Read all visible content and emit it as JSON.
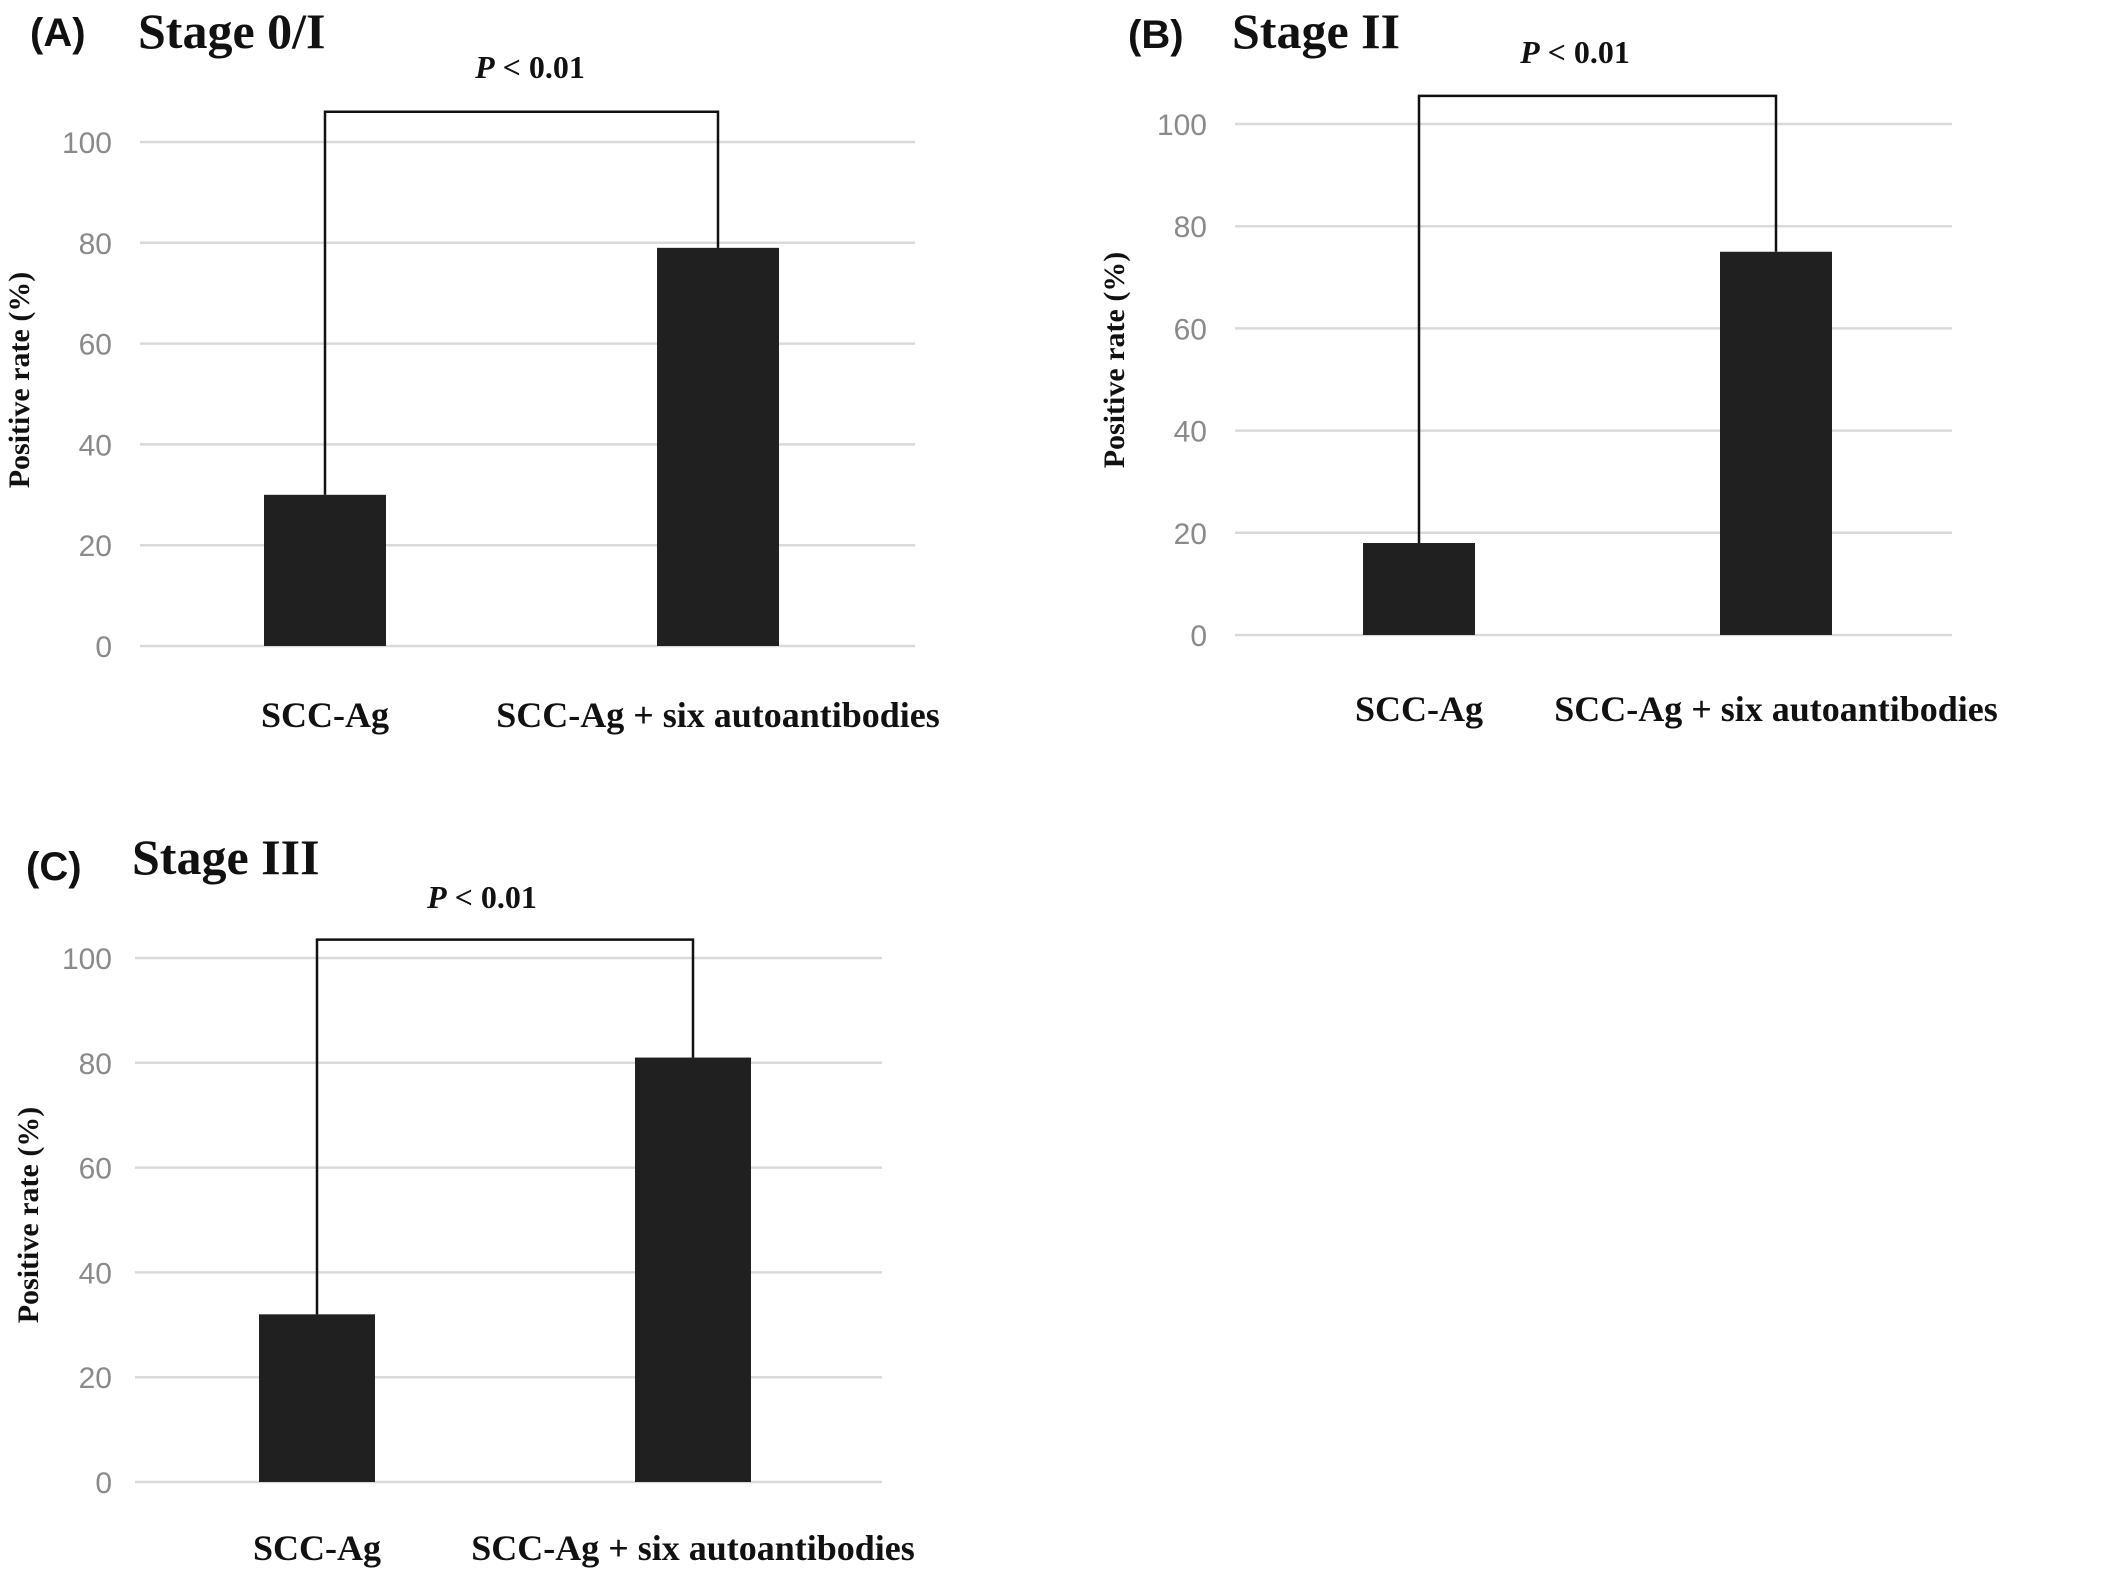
{
  "chart_data": [
    {
      "type": "bar",
      "panel": "(A)",
      "title": "Stage 0/I",
      "ylabel": "Positive rate (%)",
      "xlabel": "",
      "categories": [
        "SCC-Ag",
        "SCC-Ag + six autoantibodies"
      ],
      "values": [
        30,
        79
      ],
      "ylim": [
        0,
        100
      ],
      "yticks": [
        0,
        20,
        40,
        60,
        80,
        100
      ],
      "grid": true,
      "annotation": {
        "p_symbol": "P",
        "p_text": " < 0.01",
        "bracket_level": 106
      },
      "bar_color": "#202020"
    },
    {
      "type": "bar",
      "panel": "(B)",
      "title": "Stage II",
      "ylabel": "Positive rate (%)",
      "xlabel": "",
      "categories": [
        "SCC-Ag",
        "SCC-Ag + six autoantibodies"
      ],
      "values": [
        18,
        75
      ],
      "ylim": [
        0,
        100
      ],
      "yticks": [
        0,
        20,
        40,
        60,
        80,
        100
      ],
      "grid": true,
      "annotation": {
        "p_symbol": "P",
        "p_text": " < 0.01",
        "bracket_level": 105.5
      },
      "bar_color": "#202020"
    },
    {
      "type": "bar",
      "panel": "(C)",
      "title": "Stage III",
      "ylabel": "Positive rate (%)",
      "xlabel": "",
      "categories": [
        "SCC-Ag",
        "SCC-Ag + six autoantibodies"
      ],
      "values": [
        32,
        81
      ],
      "ylim": [
        0,
        100
      ],
      "yticks": [
        0,
        20,
        40,
        60,
        80,
        100
      ],
      "grid": true,
      "annotation": {
        "p_symbol": "P",
        "p_text": " < 0.01",
        "bracket_level": 103.5
      },
      "bar_color": "#202020"
    }
  ]
}
